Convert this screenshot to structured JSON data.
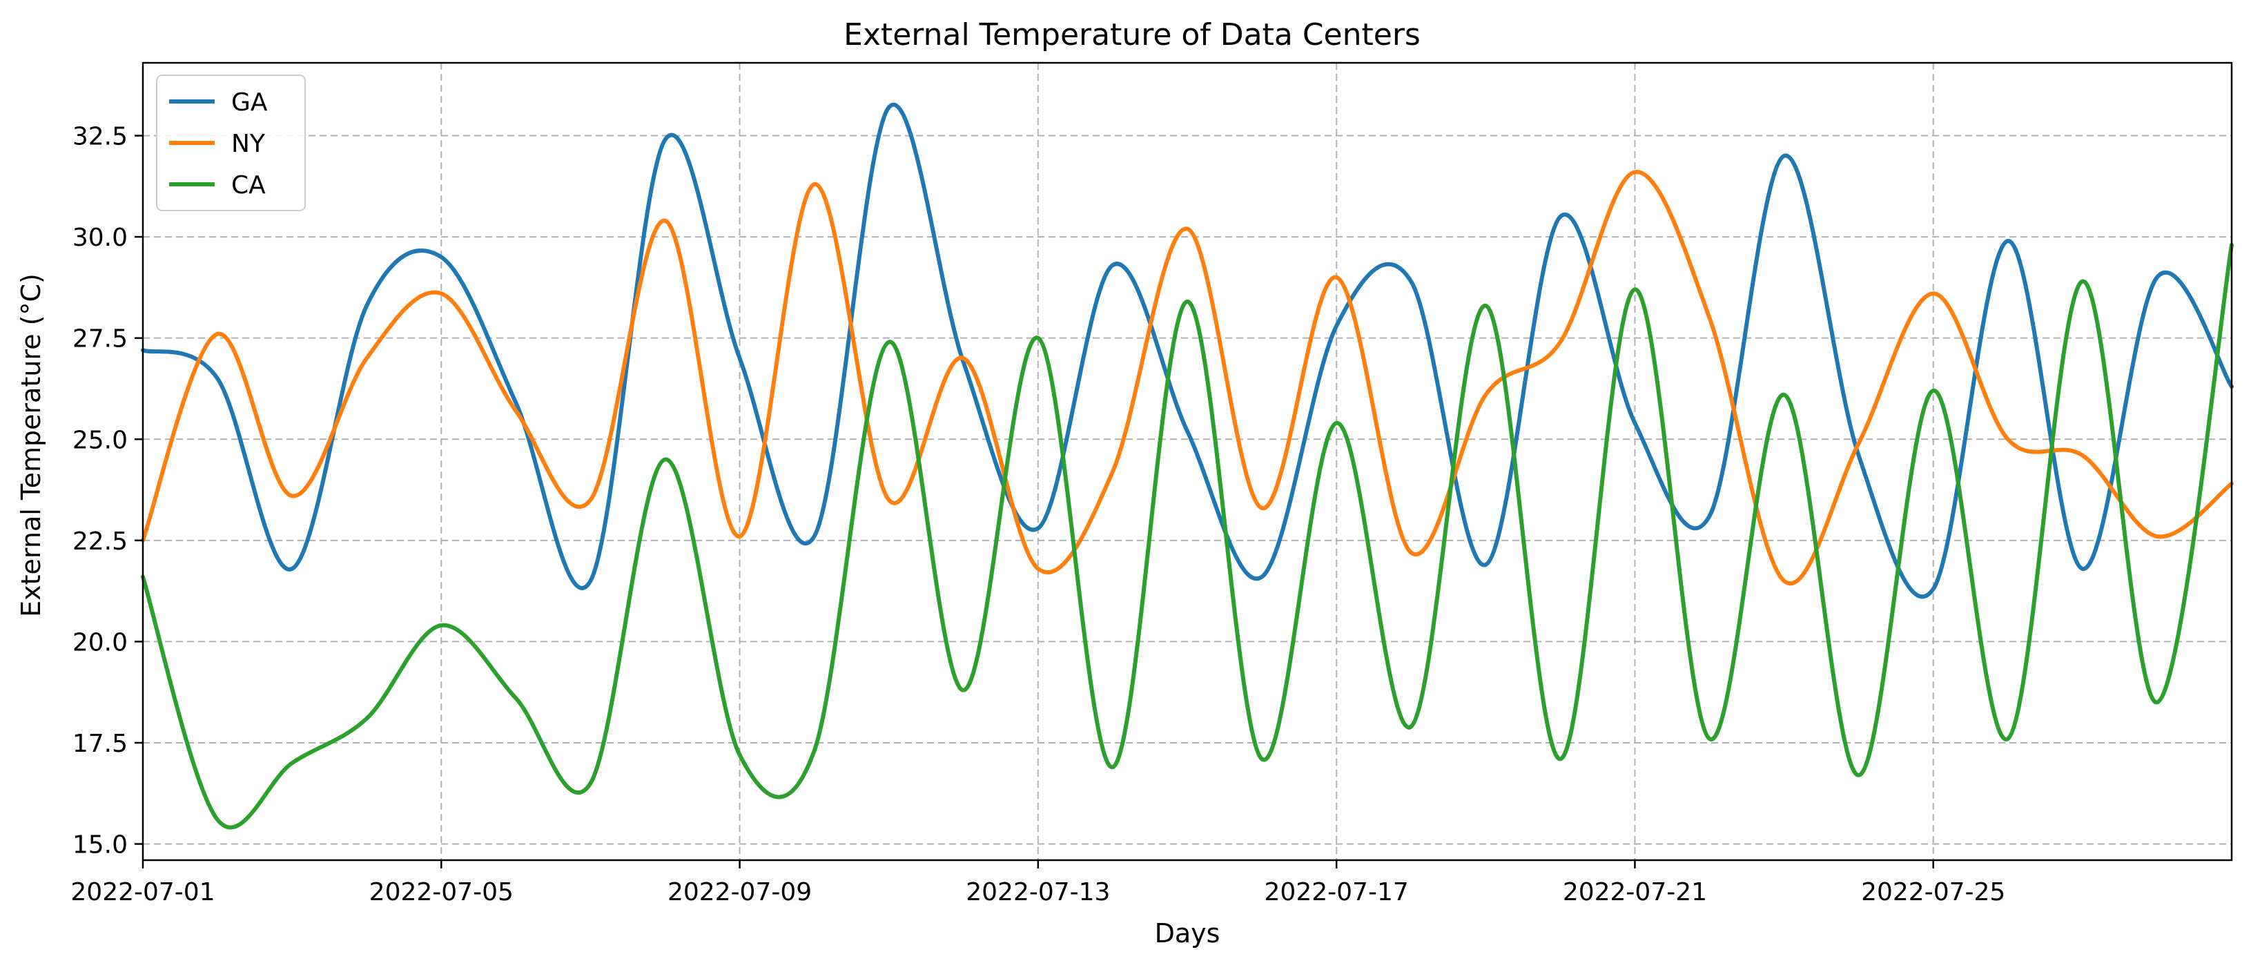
{
  "chart_data": {
    "type": "line",
    "title": "External Temperature of Data Centers",
    "xlabel": "Days",
    "ylabel": "External Temperature (°C)",
    "x_dates": [
      "2022-07-01",
      "2022-07-02",
      "2022-07-03",
      "2022-07-04",
      "2022-07-05",
      "2022-07-06",
      "2022-07-07",
      "2022-07-08",
      "2022-07-09",
      "2022-07-10",
      "2022-07-11",
      "2022-07-12",
      "2022-07-13",
      "2022-07-14",
      "2022-07-15",
      "2022-07-16",
      "2022-07-17",
      "2022-07-18",
      "2022-07-19",
      "2022-07-20",
      "2022-07-21",
      "2022-07-22",
      "2022-07-23",
      "2022-07-24",
      "2022-07-25",
      "2022-07-26",
      "2022-07-27",
      "2022-07-28",
      "2022-07-29"
    ],
    "xlim": [
      "2022-07-01",
      "2022-07-29"
    ],
    "x_ticks": [
      "2022-07-01",
      "2022-07-05",
      "2022-07-09",
      "2022-07-13",
      "2022-07-17",
      "2022-07-21",
      "2022-07-25"
    ],
    "ylim": [
      14.6,
      34.3
    ],
    "y_ticks": [
      "15.0",
      "17.5",
      "20.0",
      "22.5",
      "25.0",
      "27.5",
      "30.0",
      "32.5"
    ],
    "grid": true,
    "legend_position": "top-left",
    "series": [
      {
        "name": "GA",
        "color": "#1f77b4",
        "values": [
          27.2,
          26.5,
          21.8,
          28.3,
          29.5,
          25.9,
          21.5,
          32.4,
          27.0,
          22.6,
          33.2,
          26.9,
          22.8,
          29.3,
          25.2,
          21.6,
          27.8,
          28.9,
          21.9,
          30.5,
          25.4,
          23.1,
          32.0,
          24.6,
          21.3,
          29.9,
          21.8,
          29.0,
          26.3
        ]
      },
      {
        "name": "NY",
        "color": "#ff7f0e",
        "values": [
          22.5,
          27.6,
          23.6,
          27.0,
          28.6,
          25.7,
          23.5,
          30.4,
          22.6,
          31.3,
          23.5,
          27.0,
          21.8,
          24.2,
          30.2,
          23.3,
          29.0,
          22.2,
          26.1,
          27.4,
          31.6,
          28.0,
          21.5,
          24.9,
          28.6,
          25.0,
          24.6,
          22.6,
          23.9
        ]
      },
      {
        "name": "CA",
        "color": "#2ca02c",
        "values": [
          21.6,
          15.6,
          17.0,
          18.1,
          20.4,
          18.6,
          16.5,
          24.5,
          17.2,
          17.3,
          27.4,
          18.8,
          27.5,
          16.9,
          28.4,
          17.1,
          25.4,
          17.9,
          28.3,
          17.1,
          28.7,
          17.6,
          26.1,
          16.7,
          26.2,
          17.6,
          28.9,
          18.5,
          29.8
        ]
      }
    ]
  }
}
